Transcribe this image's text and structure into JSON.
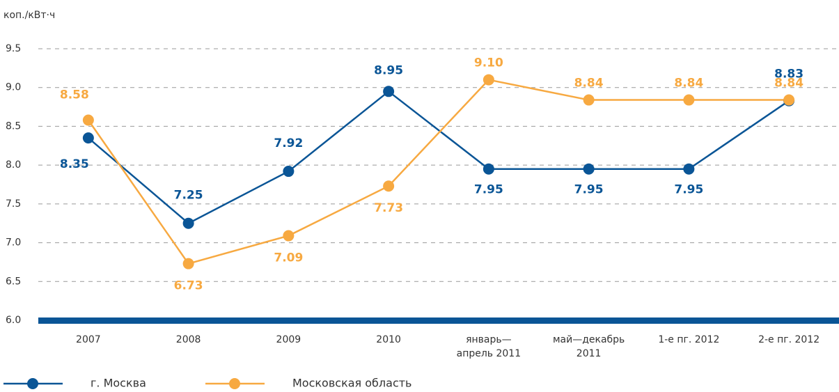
{
  "chart_data": {
    "type": "line",
    "ylabel": "коп./кВт·ч",
    "categories": [
      "2007",
      "2008",
      "2009",
      "2010",
      "январь—апрель 2011",
      "май—декабрь 2011",
      "1-е пг. 2012",
      "2-е пг. 2012"
    ],
    "series": [
      {
        "name": "г. Москва",
        "color": "#0a5596",
        "values": [
          8.35,
          7.25,
          7.92,
          8.95,
          7.95,
          7.95,
          7.95,
          8.83
        ],
        "value_labels": [
          "8.35",
          "7.25",
          "7.92",
          "8.95",
          "7.95",
          "7.95",
          "7.95",
          "8.83"
        ]
      },
      {
        "name": "Московская область",
        "color": "#f7a941",
        "values": [
          8.58,
          6.73,
          7.09,
          7.73,
          9.1,
          8.84,
          8.84,
          8.84
        ],
        "value_labels": [
          "8.58",
          "6.73",
          "7.09",
          "7.73",
          "9.10",
          "8.84",
          "8.84",
          "8.84"
        ]
      }
    ],
    "ylim": [
      6,
      9.5
    ],
    "yticks": [
      {
        "value": 6,
        "label": "6.0"
      },
      6.5,
      {
        "value": 7,
        "label": "7.0"
      },
      7.5,
      {
        "value": 8,
        "label": "8.0"
      },
      8.5,
      {
        "value": 9,
        "label": "9.0"
      },
      9.5
    ],
    "grid": true
  }
}
